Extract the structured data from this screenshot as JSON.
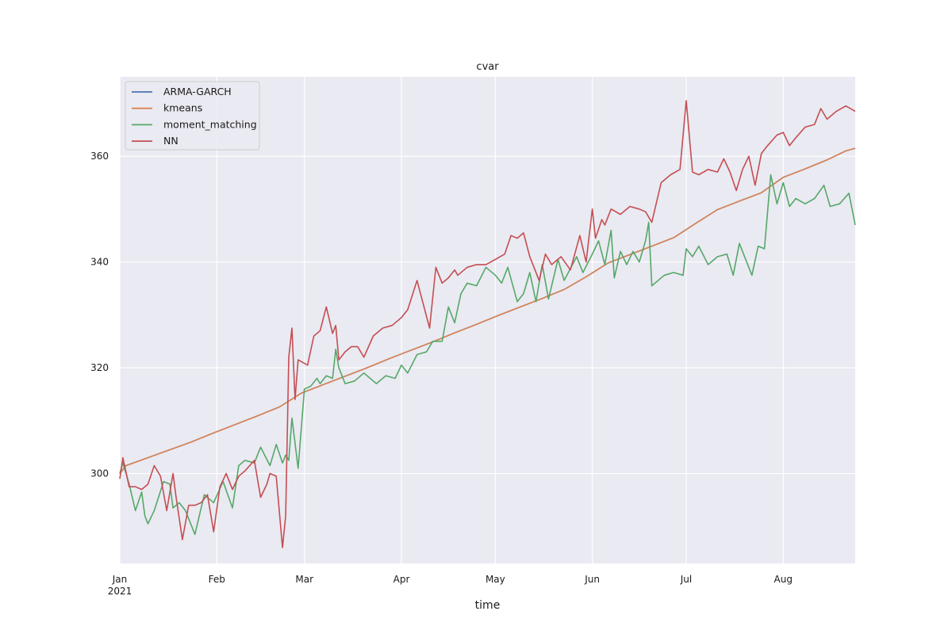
{
  "chart_data": {
    "type": "line",
    "title": "cvar",
    "xlabel": "time",
    "ylabel": "",
    "grid": true,
    "legend_position": "upper-left",
    "xlim": [
      "2021-01-01",
      "2021-08-24"
    ],
    "ylim": [
      283,
      375
    ],
    "yticks": [
      300,
      320,
      340,
      360
    ],
    "xticks": [
      {
        "date": "2021-01-01",
        "label": "Jan",
        "sublabel": "2021"
      },
      {
        "date": "2021-02-01",
        "label": "Feb",
        "sublabel": ""
      },
      {
        "date": "2021-03-01",
        "label": "Mar",
        "sublabel": ""
      },
      {
        "date": "2021-04-01",
        "label": "Apr",
        "sublabel": ""
      },
      {
        "date": "2021-05-01",
        "label": "May",
        "sublabel": ""
      },
      {
        "date": "2021-06-01",
        "label": "Jun",
        "sublabel": ""
      },
      {
        "date": "2021-07-01",
        "label": "Jul",
        "sublabel": ""
      },
      {
        "date": "2021-08-01",
        "label": "Aug",
        "sublabel": ""
      }
    ],
    "series": [
      {
        "name": "ARMA-GARCH",
        "color": "#4c72b0",
        "x": [
          "2021-01-01",
          "2021-01-03",
          "2021-01-10",
          "2021-01-17",
          "2021-01-24",
          "2021-01-31",
          "2021-02-07",
          "2021-02-14",
          "2021-02-21",
          "2021-02-28",
          "2021-03-07",
          "2021-03-14",
          "2021-03-21",
          "2021-03-28",
          "2021-04-04",
          "2021-04-11",
          "2021-04-18",
          "2021-04-25",
          "2021-05-02",
          "2021-05-09",
          "2021-05-16",
          "2021-05-23",
          "2021-05-30",
          "2021-06-06",
          "2021-06-13",
          "2021-06-20",
          "2021-06-27",
          "2021-07-04",
          "2021-07-11",
          "2021-07-18",
          "2021-07-25",
          "2021-08-01",
          "2021-08-08",
          "2021-08-15",
          "2021-08-21",
          "2021-08-24"
        ],
        "y": [
          300.0,
          301.5,
          303.0,
          304.5,
          306.0,
          307.7,
          309.3,
          310.9,
          312.6,
          315.2,
          316.8,
          318.4,
          320.0,
          321.7,
          323.3,
          324.9,
          326.6,
          328.2,
          329.9,
          331.5,
          333.1,
          334.8,
          337.2,
          339.8,
          341.4,
          343.0,
          344.6,
          347.3,
          349.9,
          351.5,
          353.1,
          356.0,
          357.6,
          359.3,
          361.0,
          361.5
        ]
      },
      {
        "name": "kmeans",
        "color": "#dd8452",
        "x": [
          "2021-01-01",
          "2021-01-03",
          "2021-01-10",
          "2021-01-17",
          "2021-01-24",
          "2021-01-31",
          "2021-02-07",
          "2021-02-14",
          "2021-02-21",
          "2021-02-28",
          "2021-03-07",
          "2021-03-14",
          "2021-03-21",
          "2021-03-28",
          "2021-04-04",
          "2021-04-11",
          "2021-04-18",
          "2021-04-25",
          "2021-05-02",
          "2021-05-09",
          "2021-05-16",
          "2021-05-23",
          "2021-05-30",
          "2021-06-06",
          "2021-06-13",
          "2021-06-20",
          "2021-06-27",
          "2021-07-04",
          "2021-07-11",
          "2021-07-18",
          "2021-07-25",
          "2021-08-01",
          "2021-08-08",
          "2021-08-15",
          "2021-08-21",
          "2021-08-24"
        ],
        "y": [
          300.0,
          301.5,
          303.0,
          304.5,
          306.0,
          307.7,
          309.3,
          310.9,
          312.6,
          315.2,
          316.8,
          318.4,
          320.0,
          321.7,
          323.3,
          324.9,
          326.6,
          328.2,
          329.9,
          331.5,
          333.1,
          334.8,
          337.2,
          339.8,
          341.4,
          343.0,
          344.6,
          347.3,
          349.9,
          351.5,
          353.1,
          356.0,
          357.6,
          359.3,
          361.0,
          361.5
        ]
      },
      {
        "name": "moment_matching",
        "color": "#55a868",
        "x": [
          "2021-01-01",
          "2021-01-02",
          "2021-01-04",
          "2021-01-06",
          "2021-01-08",
          "2021-01-09",
          "2021-01-10",
          "2021-01-12",
          "2021-01-15",
          "2021-01-17",
          "2021-01-18",
          "2021-01-20",
          "2021-01-22",
          "2021-01-25",
          "2021-01-28",
          "2021-01-31",
          "2021-02-03",
          "2021-02-06",
          "2021-02-08",
          "2021-02-10",
          "2021-02-13",
          "2021-02-15",
          "2021-02-18",
          "2021-02-20",
          "2021-02-22",
          "2021-02-23",
          "2021-02-24",
          "2021-02-25",
          "2021-02-27",
          "2021-03-01",
          "2021-03-03",
          "2021-03-05",
          "2021-03-06",
          "2021-03-08",
          "2021-03-10",
          "2021-03-11",
          "2021-03-12",
          "2021-03-14",
          "2021-03-17",
          "2021-03-20",
          "2021-03-24",
          "2021-03-27",
          "2021-03-30",
          "2021-04-01",
          "2021-04-03",
          "2021-04-06",
          "2021-04-09",
          "2021-04-11",
          "2021-04-14",
          "2021-04-16",
          "2021-04-18",
          "2021-04-20",
          "2021-04-22",
          "2021-04-25",
          "2021-04-28",
          "2021-05-01",
          "2021-05-03",
          "2021-05-05",
          "2021-05-08",
          "2021-05-10",
          "2021-05-12",
          "2021-05-14",
          "2021-05-16",
          "2021-05-18",
          "2021-05-21",
          "2021-05-23",
          "2021-05-27",
          "2021-05-29",
          "2021-06-01",
          "2021-06-03",
          "2021-06-05",
          "2021-06-07",
          "2021-06-08",
          "2021-06-10",
          "2021-06-12",
          "2021-06-14",
          "2021-06-16",
          "2021-06-18",
          "2021-06-19",
          "2021-06-20",
          "2021-06-24",
          "2021-06-27",
          "2021-06-30",
          "2021-07-01",
          "2021-07-03",
          "2021-07-05",
          "2021-07-08",
          "2021-07-11",
          "2021-07-14",
          "2021-07-16",
          "2021-07-18",
          "2021-07-20",
          "2021-07-22",
          "2021-07-24",
          "2021-07-26",
          "2021-07-28",
          "2021-07-30",
          "2021-08-01",
          "2021-08-03",
          "2021-08-05",
          "2021-08-08",
          "2021-08-11",
          "2021-08-14",
          "2021-08-16",
          "2021-08-19",
          "2021-08-22",
          "2021-08-24"
        ],
        "y": [
          300.0,
          302.0,
          298.0,
          293.0,
          296.5,
          292.0,
          290.5,
          293.0,
          298.5,
          298.0,
          293.5,
          294.5,
          293.0,
          288.5,
          296.0,
          294.5,
          298.5,
          293.5,
          301.5,
          302.5,
          302.0,
          305.0,
          301.5,
          305.5,
          302.0,
          303.5,
          302.5,
          310.5,
          301.0,
          316.0,
          316.5,
          318.0,
          317.0,
          318.5,
          318.0,
          323.5,
          320.0,
          317.0,
          317.5,
          319.0,
          317.0,
          318.5,
          318.0,
          320.5,
          319.0,
          322.5,
          323.0,
          325.0,
          325.0,
          331.5,
          328.5,
          334.0,
          336.0,
          335.5,
          339.0,
          337.5,
          336.0,
          339.0,
          332.5,
          334.0,
          338.0,
          332.5,
          339.5,
          333.0,
          340.5,
          336.5,
          341.0,
          338.0,
          341.5,
          344.0,
          339.5,
          346.0,
          337.0,
          342.0,
          339.5,
          342.0,
          340.0,
          344.0,
          347.5,
          335.5,
          337.5,
          338.0,
          337.5,
          342.5,
          341.0,
          343.0,
          339.5,
          341.0,
          341.5,
          337.5,
          343.5,
          340.5,
          337.5,
          343.0,
          342.5,
          356.5,
          351.0,
          355.0,
          350.5,
          352.0,
          351.0,
          352.0,
          354.5,
          350.5,
          351.0,
          353.0,
          347.0
        ]
      },
      {
        "name": "NN",
        "color": "#c44e52",
        "x": [
          "2021-01-01",
          "2021-01-02",
          "2021-01-04",
          "2021-01-06",
          "2021-01-08",
          "2021-01-10",
          "2021-01-12",
          "2021-01-14",
          "2021-01-16",
          "2021-01-18",
          "2021-01-19",
          "2021-01-21",
          "2021-01-23",
          "2021-01-25",
          "2021-01-27",
          "2021-01-29",
          "2021-01-31",
          "2021-02-02",
          "2021-02-04",
          "2021-02-06",
          "2021-02-08",
          "2021-02-10",
          "2021-02-13",
          "2021-02-15",
          "2021-02-17",
          "2021-02-18",
          "2021-02-20",
          "2021-02-22",
          "2021-02-23",
          "2021-02-24",
          "2021-02-25",
          "2021-02-26",
          "2021-02-27",
          "2021-03-02",
          "2021-03-04",
          "2021-03-06",
          "2021-03-08",
          "2021-03-10",
          "2021-03-11",
          "2021-03-12",
          "2021-03-14",
          "2021-03-16",
          "2021-03-18",
          "2021-03-20",
          "2021-03-23",
          "2021-03-26",
          "2021-03-29",
          "2021-04-01",
          "2021-04-03",
          "2021-04-06",
          "2021-04-08",
          "2021-04-10",
          "2021-04-12",
          "2021-04-14",
          "2021-04-16",
          "2021-04-18",
          "2021-04-19",
          "2021-04-22",
          "2021-04-25",
          "2021-04-28",
          "2021-05-01",
          "2021-05-04",
          "2021-05-06",
          "2021-05-08",
          "2021-05-10",
          "2021-05-12",
          "2021-05-15",
          "2021-05-17",
          "2021-05-19",
          "2021-05-22",
          "2021-05-25",
          "2021-05-28",
          "2021-05-30",
          "2021-06-01",
          "2021-06-02",
          "2021-06-04",
          "2021-06-05",
          "2021-06-07",
          "2021-06-10",
          "2021-06-13",
          "2021-06-16",
          "2021-06-18",
          "2021-06-20",
          "2021-06-23",
          "2021-06-26",
          "2021-06-29",
          "2021-07-01",
          "2021-07-03",
          "2021-07-05",
          "2021-07-08",
          "2021-07-11",
          "2021-07-13",
          "2021-07-15",
          "2021-07-17",
          "2021-07-19",
          "2021-07-21",
          "2021-07-23",
          "2021-07-25",
          "2021-07-27",
          "2021-07-30",
          "2021-08-01",
          "2021-08-03",
          "2021-08-05",
          "2021-08-08",
          "2021-08-11",
          "2021-08-13",
          "2021-08-15",
          "2021-08-18",
          "2021-08-21",
          "2021-08-24"
        ],
        "y": [
          299.0,
          303.0,
          297.5,
          297.5,
          297.0,
          298.0,
          301.5,
          299.5,
          293.0,
          300.0,
          295.5,
          287.5,
          294.0,
          294.0,
          294.5,
          296.0,
          289.0,
          297.5,
          300.0,
          297.0,
          299.5,
          300.5,
          302.5,
          295.5,
          298.0,
          300.0,
          299.5,
          286.0,
          292.0,
          322.0,
          327.5,
          314.0,
          321.5,
          320.5,
          326.0,
          327.0,
          331.5,
          326.5,
          328.0,
          321.5,
          323.0,
          324.0,
          324.0,
          322.0,
          326.0,
          327.5,
          328.0,
          329.5,
          331.0,
          336.5,
          332.0,
          327.5,
          339.0,
          336.0,
          337.0,
          338.5,
          337.5,
          339.0,
          339.5,
          339.5,
          340.5,
          341.5,
          345.0,
          344.5,
          345.5,
          341.0,
          336.5,
          341.5,
          339.5,
          341.0,
          338.5,
          345.0,
          340.0,
          350.0,
          344.5,
          348.0,
          347.0,
          350.0,
          349.0,
          350.5,
          350.0,
          349.5,
          347.5,
          355.0,
          356.5,
          357.5,
          370.5,
          357.0,
          356.5,
          357.5,
          357.0,
          359.5,
          357.0,
          353.5,
          357.5,
          360.0,
          354.5,
          360.5,
          362.0,
          364.0,
          364.5,
          362.0,
          363.5,
          365.5,
          366.0,
          369.0,
          367.0,
          368.5,
          369.5,
          368.5
        ]
      }
    ]
  }
}
